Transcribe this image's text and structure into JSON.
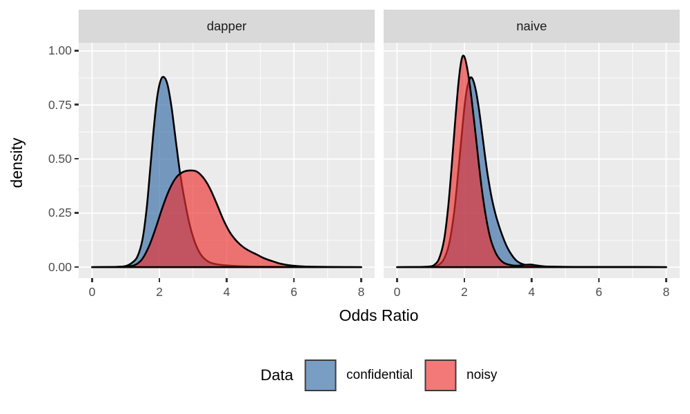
{
  "chart_data": {
    "type": "area",
    "subtype": "kernel-density",
    "title": "",
    "xlabel": "Odds Ratio",
    "ylabel": "density",
    "xlim": [
      0,
      8
    ],
    "ylim": [
      0,
      1.0
    ],
    "grid": "on",
    "legend_position": "bottom",
    "x_tick_labels": [
      "0",
      "2",
      "4",
      "6",
      "8"
    ],
    "y_tick_labels": [
      "0.00",
      "0.25",
      "0.50",
      "0.75",
      "1.00"
    ],
    "axes": {
      "x_major": [
        0,
        2,
        4,
        6,
        8
      ],
      "x_minor": [
        1,
        3,
        5,
        7
      ],
      "y_major": [
        0,
        0.25,
        0.5,
        0.75,
        1.0
      ],
      "y_minor": [
        0.125,
        0.375,
        0.625,
        0.875
      ]
    },
    "facets": [
      {
        "label": "dapper",
        "series": [
          {
            "name": "confidential",
            "peak": {
              "x": 2.1,
              "density": 0.88
            },
            "points": [
              [
                0,
                0
              ],
              [
                0.6,
                0.001
              ],
              [
                0.9,
                0.003
              ],
              [
                1.05,
                0.008
              ],
              [
                1.2,
                0.022
              ],
              [
                1.35,
                0.05
              ],
              [
                1.5,
                0.13
              ],
              [
                1.62,
                0.27
              ],
              [
                1.72,
                0.44
              ],
              [
                1.82,
                0.62
              ],
              [
                1.92,
                0.77
              ],
              [
                2.02,
                0.855
              ],
              [
                2.12,
                0.88
              ],
              [
                2.24,
                0.845
              ],
              [
                2.36,
                0.74
              ],
              [
                2.5,
                0.57
              ],
              [
                2.62,
                0.43
              ],
              [
                2.75,
                0.31
              ],
              [
                2.88,
                0.21
              ],
              [
                3.0,
                0.14
              ],
              [
                3.15,
                0.08
              ],
              [
                3.3,
                0.045
              ],
              [
                3.5,
                0.022
              ],
              [
                3.75,
                0.012
              ],
              [
                4.0,
                0.008
              ],
              [
                4.3,
                0.005
              ],
              [
                4.7,
                0.003
              ],
              [
                5.3,
                0.002
              ],
              [
                6.5,
                0.001
              ],
              [
                8,
                0
              ]
            ]
          },
          {
            "name": "noisy",
            "peak": {
              "x": 2.9,
              "density": 0.447
            },
            "points": [
              [
                0,
                0
              ],
              [
                0.8,
                0.001
              ],
              [
                1.1,
                0.004
              ],
              [
                1.3,
                0.012
              ],
              [
                1.5,
                0.04
              ],
              [
                1.7,
                0.1
              ],
              [
                1.9,
                0.185
              ],
              [
                2.1,
                0.28
              ],
              [
                2.3,
                0.36
              ],
              [
                2.5,
                0.415
              ],
              [
                2.7,
                0.44
              ],
              [
                2.9,
                0.447
              ],
              [
                3.1,
                0.443
              ],
              [
                3.3,
                0.415
              ],
              [
                3.5,
                0.365
              ],
              [
                3.7,
                0.295
              ],
              [
                3.9,
                0.22
              ],
              [
                4.1,
                0.16
              ],
              [
                4.3,
                0.12
              ],
              [
                4.5,
                0.092
              ],
              [
                4.7,
                0.073
              ],
              [
                4.9,
                0.058
              ],
              [
                5.1,
                0.042
              ],
              [
                5.35,
                0.028
              ],
              [
                5.6,
                0.016
              ],
              [
                5.9,
                0.008
              ],
              [
                6.2,
                0.004
              ],
              [
                6.6,
                0.002
              ],
              [
                7.2,
                0.001
              ],
              [
                8,
                0
              ]
            ]
          }
        ]
      },
      {
        "label": "naive",
        "series": [
          {
            "name": "confidential",
            "peak": {
              "x": 2.2,
              "density": 0.875
            },
            "points": [
              [
                0,
                0
              ],
              [
                0.85,
                0.001
              ],
              [
                1.1,
                0.004
              ],
              [
                1.25,
                0.012
              ],
              [
                1.4,
                0.04
              ],
              [
                1.55,
                0.11
              ],
              [
                1.7,
                0.26
              ],
              [
                1.83,
                0.46
              ],
              [
                1.95,
                0.66
              ],
              [
                2.05,
                0.8
              ],
              [
                2.15,
                0.868
              ],
              [
                2.24,
                0.872
              ],
              [
                2.35,
                0.81
              ],
              [
                2.47,
                0.69
              ],
              [
                2.6,
                0.53
              ],
              [
                2.7,
                0.42
              ],
              [
                2.8,
                0.33
              ],
              [
                2.9,
                0.26
              ],
              [
                3.0,
                0.205
              ],
              [
                3.12,
                0.15
              ],
              [
                3.25,
                0.1
              ],
              [
                3.4,
                0.058
              ],
              [
                3.55,
                0.03
              ],
              [
                3.7,
                0.016
              ],
              [
                3.9,
                0.008
              ],
              [
                4.15,
                0.004
              ],
              [
                4.5,
                0.002
              ],
              [
                5.2,
                0.001
              ],
              [
                6.5,
                0.001
              ],
              [
                8,
                0
              ]
            ]
          },
          {
            "name": "noisy",
            "peak": {
              "x": 1.95,
              "density": 0.98
            },
            "points": [
              [
                0,
                0
              ],
              [
                0.7,
                0.001
              ],
              [
                0.95,
                0.003
              ],
              [
                1.1,
                0.01
              ],
              [
                1.25,
                0.04
              ],
              [
                1.4,
                0.13
              ],
              [
                1.52,
                0.28
              ],
              [
                1.64,
                0.5
              ],
              [
                1.74,
                0.7
              ],
              [
                1.83,
                0.86
              ],
              [
                1.91,
                0.955
              ],
              [
                1.98,
                0.978
              ],
              [
                2.06,
                0.94
              ],
              [
                2.16,
                0.845
              ],
              [
                2.28,
                0.69
              ],
              [
                2.4,
                0.52
              ],
              [
                2.52,
                0.36
              ],
              [
                2.65,
                0.225
              ],
              [
                2.78,
                0.13
              ],
              [
                2.92,
                0.07
              ],
              [
                3.06,
                0.035
              ],
              [
                3.2,
                0.018
              ],
              [
                3.4,
                0.009
              ],
              [
                3.6,
                0.007
              ],
              [
                3.82,
                0.011
              ],
              [
                3.98,
                0.012
              ],
              [
                4.15,
                0.008
              ],
              [
                4.35,
                0.004
              ],
              [
                4.7,
                0.002
              ],
              [
                5.5,
                0.001
              ],
              [
                6.5,
                0.001
              ],
              [
                8,
                0
              ]
            ]
          }
        ]
      }
    ],
    "legend": {
      "title": "Data",
      "entries": [
        {
          "name": "confidential",
          "label": "confidential",
          "swatch_hex": "#7B9EC4"
        },
        {
          "name": "noisy",
          "label": "noisy",
          "swatch_hex": "#EE7170"
        }
      ]
    }
  },
  "colors": {
    "panel_bg": "#EBEBEB",
    "strip_bg": "#D9D9D9",
    "strip_text": "#1A1A1A",
    "grid": "#FFFFFF",
    "axis_text": "#4D4D4D",
    "tick_mark": "#333333",
    "title_text": "#000000",
    "curve_stroke": "#000000",
    "confidential_fill": "rgba(66,116,171,0.70)",
    "noisy_fill": "rgba(237,48,47,0.65)",
    "legend_key_border": "#3C3C3C",
    "legend_key_bg": "#FFFFFF"
  }
}
